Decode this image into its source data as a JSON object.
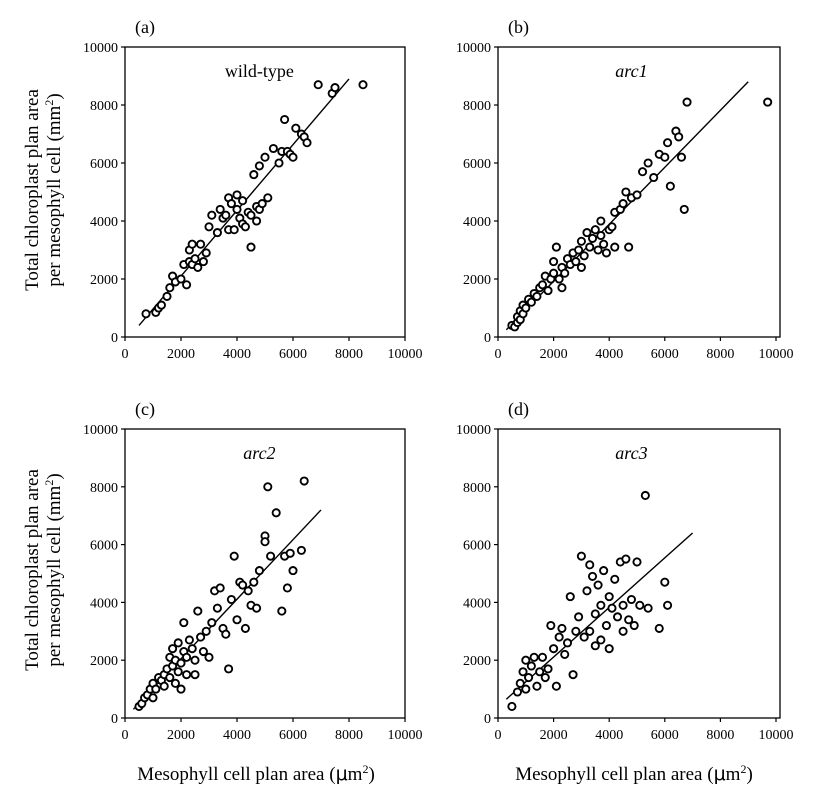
{
  "y_axis_title": {
    "line1": "Total chloroplast plan area",
    "line2": "per mesophyll cell (mm",
    "sup": "2",
    "close": ")"
  },
  "x_axis_title": {
    "text": "Mesophyll cell plan area (",
    "mu": "μ",
    "unit": "m",
    "sup": "2",
    "close": ")"
  },
  "chart_data": [
    {
      "type": "scatter",
      "letter": "(a)",
      "title": "wild-type",
      "title_style": "normal",
      "xlim": [
        0,
        10000
      ],
      "ylim": [
        0,
        10000
      ],
      "xticks": [
        "0",
        "2000",
        "4000",
        "6000",
        "8000",
        "10000"
      ],
      "yticks": [
        "0",
        "2000",
        "4000",
        "6000",
        "8000",
        "10000"
      ],
      "xlabel": "",
      "ylabel": "Total chloroplast plan area per mesophyll cell (mm2)",
      "fit_line": {
        "x": [
          500,
          8000
        ],
        "y": [
          400,
          8900
        ]
      },
      "points": [
        [
          750,
          800
        ],
        [
          1100,
          850
        ],
        [
          1200,
          1000
        ],
        [
          1300,
          1100
        ],
        [
          1500,
          1400
        ],
        [
          1600,
          1700
        ],
        [
          1700,
          2100
        ],
        [
          1800,
          1900
        ],
        [
          2000,
          2000
        ],
        [
          2100,
          2500
        ],
        [
          2200,
          1800
        ],
        [
          2300,
          2600
        ],
        [
          2300,
          3000
        ],
        [
          2400,
          2500
        ],
        [
          2400,
          3200
        ],
        [
          2500,
          2700
        ],
        [
          2600,
          2400
        ],
        [
          2700,
          3200
        ],
        [
          2800,
          2600
        ],
        [
          2900,
          2900
        ],
        [
          3000,
          3800
        ],
        [
          3100,
          4200
        ],
        [
          3300,
          3600
        ],
        [
          3400,
          4400
        ],
        [
          3500,
          4100
        ],
        [
          3600,
          4200
        ],
        [
          3700,
          3700
        ],
        [
          3700,
          4800
        ],
        [
          3800,
          4600
        ],
        [
          3900,
          3700
        ],
        [
          4000,
          4400
        ],
        [
          4000,
          4900
        ],
        [
          4100,
          4100
        ],
        [
          4200,
          4700
        ],
        [
          4200,
          3900
        ],
        [
          4300,
          3800
        ],
        [
          4400,
          4300
        ],
        [
          4500,
          4200
        ],
        [
          4500,
          3100
        ],
        [
          4600,
          5600
        ],
        [
          4700,
          4000
        ],
        [
          4700,
          4500
        ],
        [
          4800,
          4400
        ],
        [
          4800,
          5900
        ],
        [
          4900,
          4600
        ],
        [
          5000,
          6200
        ],
        [
          5100,
          4800
        ],
        [
          5300,
          6500
        ],
        [
          5500,
          6000
        ],
        [
          5600,
          6400
        ],
        [
          5700,
          7500
        ],
        [
          5800,
          6400
        ],
        [
          5900,
          6300
        ],
        [
          6000,
          6200
        ],
        [
          6100,
          7200
        ],
        [
          6300,
          7000
        ],
        [
          6400,
          6900
        ],
        [
          6500,
          6700
        ],
        [
          6900,
          8700
        ],
        [
          7400,
          8400
        ],
        [
          7500,
          8600
        ],
        [
          8500,
          8700
        ]
      ]
    },
    {
      "type": "scatter",
      "letter": "(b)",
      "title": "arc1",
      "title_style": "italic",
      "xlim": [
        0,
        10000
      ],
      "ylim": [
        0,
        10000
      ],
      "xticks": [
        "0",
        "2000",
        "4000",
        "6000",
        "8000",
        "10000"
      ],
      "yticks": [
        "0",
        "2000",
        "4000",
        "6000",
        "8000",
        "10000"
      ],
      "xlabel": "",
      "ylabel": "",
      "fit_line": {
        "x": [
          300,
          9000
        ],
        "y": [
          250,
          8800
        ]
      },
      "points": [
        [
          500,
          400
        ],
        [
          600,
          350
        ],
        [
          700,
          500
        ],
        [
          700,
          700
        ],
        [
          800,
          600
        ],
        [
          800,
          900
        ],
        [
          900,
          800
        ],
        [
          900,
          1100
        ],
        [
          1000,
          1000
        ],
        [
          1100,
          1300
        ],
        [
          1200,
          1200
        ],
        [
          1300,
          1500
        ],
        [
          1400,
          1400
        ],
        [
          1500,
          1700
        ],
        [
          1600,
          1800
        ],
        [
          1700,
          2100
        ],
        [
          1800,
          1600
        ],
        [
          1900,
          2000
        ],
        [
          2000,
          2200
        ],
        [
          2000,
          2600
        ],
        [
          2100,
          3100
        ],
        [
          2200,
          2000
        ],
        [
          2300,
          2400
        ],
        [
          2300,
          1700
        ],
        [
          2400,
          2200
        ],
        [
          2500,
          2700
        ],
        [
          2600,
          2500
        ],
        [
          2700,
          2900
        ],
        [
          2800,
          2600
        ],
        [
          2900,
          3000
        ],
        [
          3000,
          3300
        ],
        [
          3000,
          2400
        ],
        [
          3100,
          2800
        ],
        [
          3200,
          3600
        ],
        [
          3300,
          3100
        ],
        [
          3400,
          3400
        ],
        [
          3500,
          3700
        ],
        [
          3600,
          3000
        ],
        [
          3700,
          3500
        ],
        [
          3700,
          4000
        ],
        [
          3800,
          3200
        ],
        [
          3900,
          2900
        ],
        [
          4000,
          3700
        ],
        [
          4100,
          3800
        ],
        [
          4200,
          4300
        ],
        [
          4200,
          3100
        ],
        [
          4400,
          4400
        ],
        [
          4500,
          4600
        ],
        [
          4600,
          5000
        ],
        [
          4700,
          3100
        ],
        [
          4800,
          4800
        ],
        [
          5000,
          4900
        ],
        [
          5200,
          5700
        ],
        [
          5400,
          6000
        ],
        [
          5600,
          5500
        ],
        [
          5800,
          6300
        ],
        [
          6000,
          6200
        ],
        [
          6100,
          6700
        ],
        [
          6200,
          5200
        ],
        [
          6400,
          7100
        ],
        [
          6500,
          6900
        ],
        [
          6600,
          6200
        ],
        [
          6700,
          4400
        ],
        [
          6800,
          8100
        ],
        [
          9700,
          8100
        ]
      ]
    },
    {
      "type": "scatter",
      "letter": "(c)",
      "title": "arc2",
      "title_style": "italic",
      "xlim": [
        0,
        10000
      ],
      "ylim": [
        0,
        10000
      ],
      "xticks": [
        "0",
        "2000",
        "4000",
        "6000",
        "8000",
        "10000"
      ],
      "yticks": [
        "0",
        "2000",
        "4000",
        "6000",
        "8000",
        "10000"
      ],
      "xlabel": "Mesophyll cell plan area (μm2)",
      "ylabel": "Total chloroplast plan area per mesophyll cell (mm2)",
      "fit_line": {
        "x": [
          300,
          7000
        ],
        "y": [
          300,
          7200
        ]
      },
      "points": [
        [
          500,
          400
        ],
        [
          600,
          500
        ],
        [
          700,
          700
        ],
        [
          800,
          800
        ],
        [
          900,
          1000
        ],
        [
          1000,
          700
        ],
        [
          1000,
          1200
        ],
        [
          1100,
          1000
        ],
        [
          1200,
          1400
        ],
        [
          1300,
          1300
        ],
        [
          1400,
          1100
        ],
        [
          1400,
          1500
        ],
        [
          1500,
          1700
        ],
        [
          1600,
          1400
        ],
        [
          1600,
          2100
        ],
        [
          1700,
          1800
        ],
        [
          1700,
          2400
        ],
        [
          1800,
          1200
        ],
        [
          1800,
          2000
        ],
        [
          1900,
          1600
        ],
        [
          1900,
          2600
        ],
        [
          2000,
          1900
        ],
        [
          2000,
          1000
        ],
        [
          2100,
          2300
        ],
        [
          2100,
          3300
        ],
        [
          2200,
          2100
        ],
        [
          2200,
          1500
        ],
        [
          2300,
          2700
        ],
        [
          2400,
          2400
        ],
        [
          2500,
          2000
        ],
        [
          2500,
          1500
        ],
        [
          2600,
          3700
        ],
        [
          2700,
          2800
        ],
        [
          2800,
          2300
        ],
        [
          2900,
          3000
        ],
        [
          3000,
          2100
        ],
        [
          3100,
          3300
        ],
        [
          3200,
          4400
        ],
        [
          3300,
          3800
        ],
        [
          3400,
          4500
        ],
        [
          3500,
          3100
        ],
        [
          3600,
          2900
        ],
        [
          3700,
          1700
        ],
        [
          3800,
          4100
        ],
        [
          3900,
          5600
        ],
        [
          4000,
          3400
        ],
        [
          4100,
          4700
        ],
        [
          4200,
          4600
        ],
        [
          4300,
          3100
        ],
        [
          4400,
          4400
        ],
        [
          4500,
          3900
        ],
        [
          4600,
          4700
        ],
        [
          4700,
          3800
        ],
        [
          4800,
          5100
        ],
        [
          5000,
          6300
        ],
        [
          5000,
          6100
        ],
        [
          5100,
          8000
        ],
        [
          5200,
          5600
        ],
        [
          5400,
          7100
        ],
        [
          5600,
          3700
        ],
        [
          5700,
          5600
        ],
        [
          5800,
          4500
        ],
        [
          5900,
          5700
        ],
        [
          6000,
          5100
        ],
        [
          6300,
          5800
        ],
        [
          6400,
          8200
        ]
      ]
    },
    {
      "type": "scatter",
      "letter": "(d)",
      "title": "arc3",
      "title_style": "italic",
      "xlim": [
        0,
        10000
      ],
      "ylim": [
        0,
        10000
      ],
      "xticks": [
        "0",
        "2000",
        "4000",
        "6000",
        "8000",
        "10000"
      ],
      "yticks": [
        "0",
        "2000",
        "4000",
        "6000",
        "8000",
        "10000"
      ],
      "xlabel": "Mesophyll cell plan area (μm2)",
      "ylabel": "",
      "fit_line": {
        "x": [
          300,
          7000
        ],
        "y": [
          650,
          6400
        ]
      },
      "points": [
        [
          500,
          400
        ],
        [
          700,
          900
        ],
        [
          800,
          1200
        ],
        [
          900,
          1600
        ],
        [
          1000,
          1000
        ],
        [
          1000,
          2000
        ],
        [
          1100,
          1400
        ],
        [
          1200,
          1800
        ],
        [
          1300,
          2100
        ],
        [
          1400,
          1100
        ],
        [
          1500,
          1600
        ],
        [
          1600,
          2100
        ],
        [
          1700,
          1400
        ],
        [
          1800,
          1700
        ],
        [
          1900,
          3200
        ],
        [
          2000,
          2400
        ],
        [
          2100,
          1100
        ],
        [
          2200,
          2800
        ],
        [
          2300,
          3100
        ],
        [
          2400,
          2200
        ],
        [
          2500,
          2600
        ],
        [
          2600,
          4200
        ],
        [
          2700,
          1500
        ],
        [
          2800,
          3000
        ],
        [
          2900,
          3500
        ],
        [
          3000,
          5600
        ],
        [
          3100,
          2800
        ],
        [
          3200,
          4400
        ],
        [
          3300,
          3000
        ],
        [
          3300,
          5300
        ],
        [
          3400,
          4900
        ],
        [
          3500,
          3600
        ],
        [
          3500,
          2500
        ],
        [
          3600,
          4600
        ],
        [
          3700,
          3900
        ],
        [
          3700,
          2700
        ],
        [
          3800,
          5100
        ],
        [
          3900,
          3200
        ],
        [
          4000,
          4200
        ],
        [
          4000,
          2400
        ],
        [
          4100,
          3800
        ],
        [
          4200,
          4800
        ],
        [
          4300,
          3500
        ],
        [
          4400,
          5400
        ],
        [
          4500,
          3000
        ],
        [
          4500,
          3900
        ],
        [
          4600,
          5500
        ],
        [
          4700,
          3400
        ],
        [
          4800,
          4100
        ],
        [
          4900,
          3200
        ],
        [
          5000,
          5400
        ],
        [
          5100,
          3900
        ],
        [
          5300,
          7700
        ],
        [
          5400,
          3800
        ],
        [
          5800,
          3100
        ],
        [
          6000,
          4700
        ],
        [
          6100,
          3900
        ]
      ]
    }
  ]
}
